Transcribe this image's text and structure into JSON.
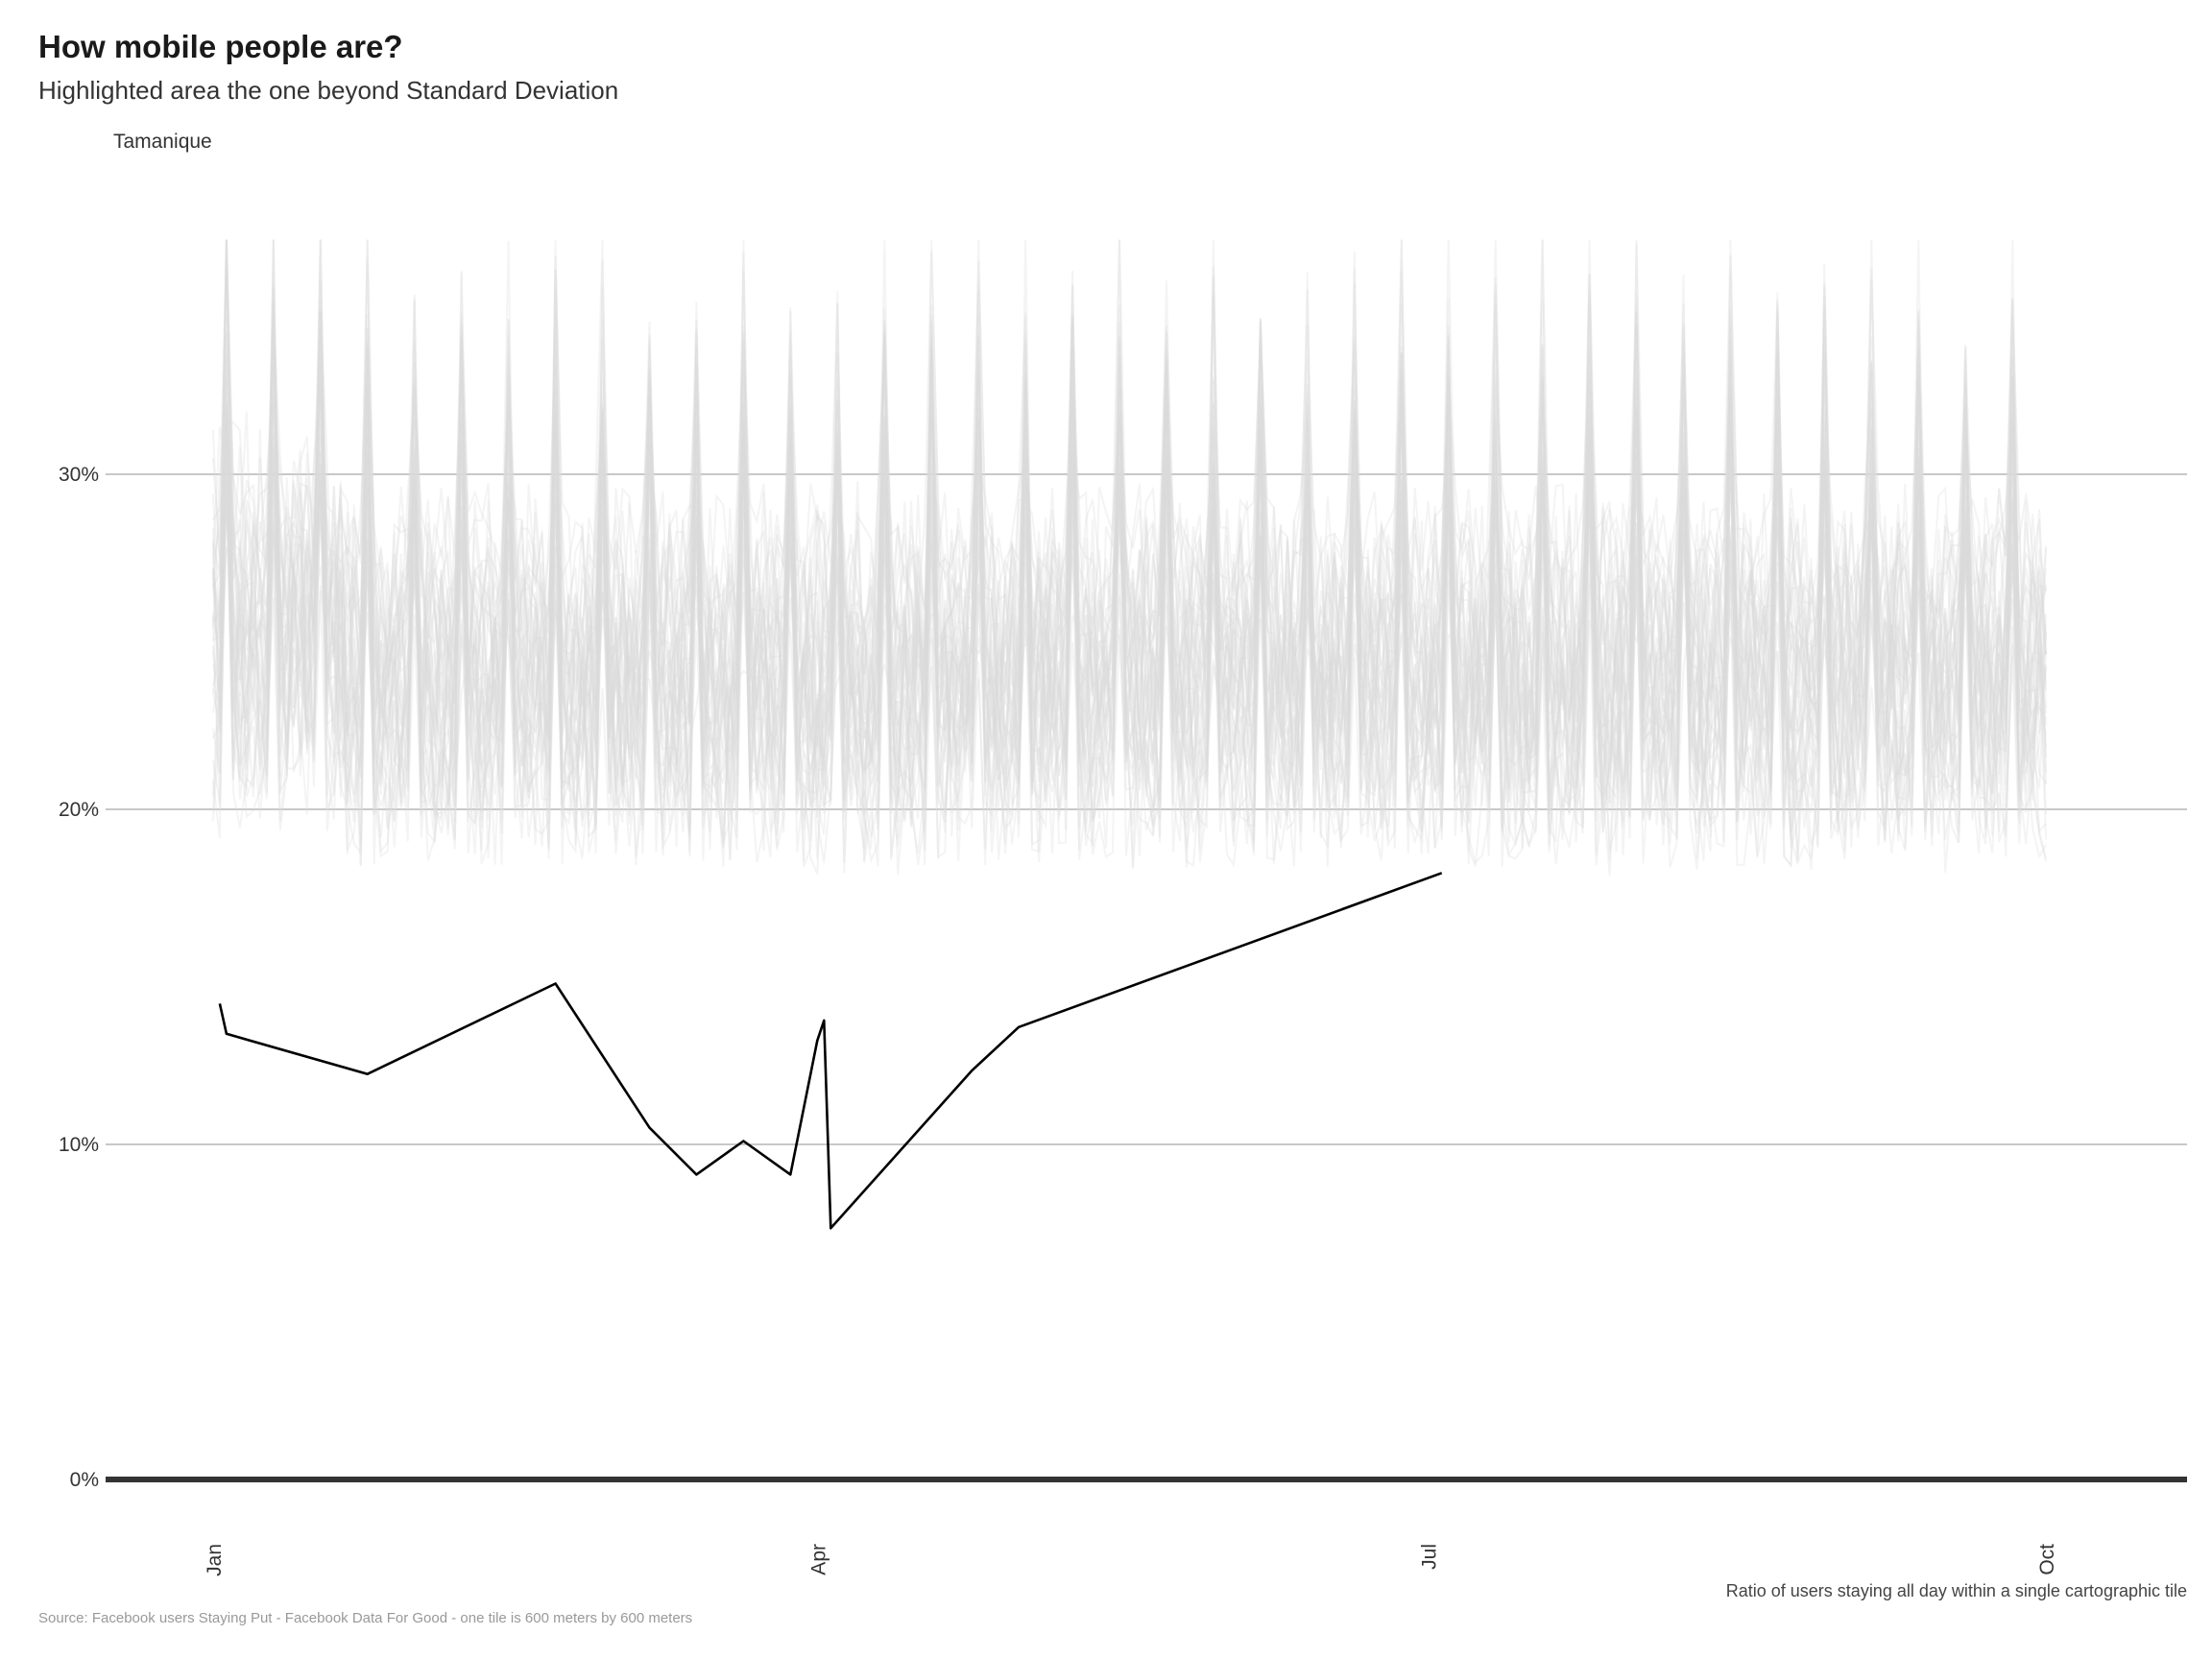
{
  "chart_data": {
    "type": "line",
    "title": "How mobile people are?",
    "subtitle": "Highlighted area the one beyond Standard Deviation",
    "facet_label": "Tamanique",
    "xlabel": "Ratio of users staying all day within a single cartographic tile",
    "ylabel": "",
    "caption": "Source: Facebook users Staying Put - Facebook Data For Good - one tile is 600 meters by 600 meters",
    "x_axis": {
      "type": "date",
      "range": [
        "2020-12-16",
        "2021-10-22"
      ],
      "ticks": [
        {
          "date": "2021-01-01",
          "label": "Jan"
        },
        {
          "date": "2021-04-01",
          "label": "Apr"
        },
        {
          "date": "2021-07-01",
          "label": "Jul"
        },
        {
          "date": "2021-10-01",
          "label": "Oct"
        }
      ]
    },
    "y_axis": {
      "ylim": [
        0,
        0.4
      ],
      "ticks": [
        {
          "value": 0,
          "label": "0%"
        },
        {
          "value": 0.1,
          "label": "10%"
        },
        {
          "value": 0.2,
          "label": "20%"
        },
        {
          "value": 0.3,
          "label": "30%"
        }
      ]
    },
    "grid": true,
    "legend": "none",
    "background_series": {
      "description_color": "#d9d9d9",
      "opacity": 0.3,
      "date_range": [
        "2021-01-01",
        "2021-10-01"
      ],
      "value_range": [
        0.13,
        0.37
      ],
      "center_band": [
        0.2,
        0.3
      ]
    },
    "series": [
      {
        "color": "#000000",
        "points": [
          {
            "date": "2021-01-02",
            "value": 0.142
          },
          {
            "date": "2021-01-03",
            "value": 0.133
          },
          {
            "date": "2021-01-24",
            "value": 0.121
          },
          {
            "date": "2021-02-21",
            "value": 0.148
          },
          {
            "date": "2021-03-07",
            "value": 0.105
          },
          {
            "date": "2021-03-14",
            "value": 0.091
          },
          {
            "date": "2021-03-21",
            "value": 0.101
          },
          {
            "date": "2021-03-28",
            "value": 0.091
          },
          {
            "date": "2021-04-01",
            "value": 0.131
          },
          {
            "date": "2021-04-02",
            "value": 0.137
          },
          {
            "date": "2021-04-03",
            "value": 0.075
          },
          {
            "date": "2021-04-24",
            "value": 0.122
          },
          {
            "date": "2021-05-01",
            "value": 0.135
          },
          {
            "date": "2021-07-03",
            "value": 0.181
          }
        ]
      }
    ]
  }
}
